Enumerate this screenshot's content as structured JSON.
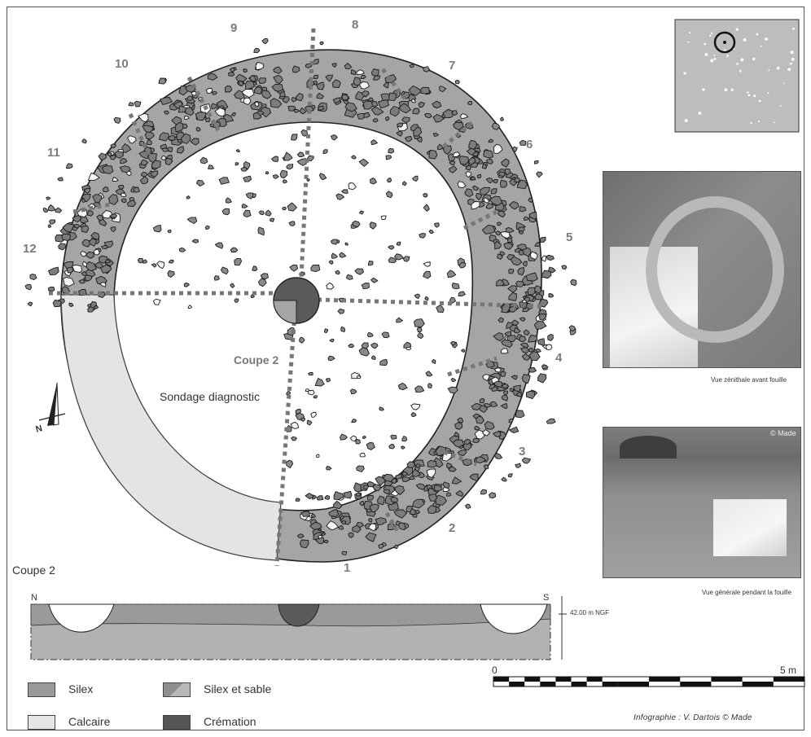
{
  "colors": {
    "silex": "#9a9a9a",
    "calcaire": "#e4e4e4",
    "cremation": "#5a5a5a",
    "stone_fill": "#8e8e8e",
    "ground_photo": "#8a8a8a"
  },
  "plan": {
    "sector_numbers": [
      "1",
      "2",
      "3",
      "4",
      "5",
      "6",
      "7",
      "8",
      "9",
      "10",
      "11",
      "12"
    ],
    "coupe_label": "Coupe 2",
    "sondage_label": "Sondage diagnostic",
    "north_label": "N"
  },
  "section": {
    "title": "Coupe 2",
    "left_label": "N",
    "right_label": "S",
    "datum_label": "42.00 m NGF"
  },
  "photos": {
    "top_caption": "Vue zénithale avant fouille",
    "bottom_caption": "Vue générale pendant la fouille",
    "bottom_watermark": "© Made"
  },
  "legend": {
    "items": [
      {
        "label": "Silex",
        "color": "#9a9a9a"
      },
      {
        "label": "Silex et sable",
        "color": "#a8a8a8"
      },
      {
        "label": "Calcaire",
        "color": "#e6e6e6"
      },
      {
        "label": "Crémation",
        "color": "#555555"
      }
    ]
  },
  "scale": {
    "start": "0",
    "end": "5 m"
  },
  "credit": "Infographie : V. Dartois © Made"
}
